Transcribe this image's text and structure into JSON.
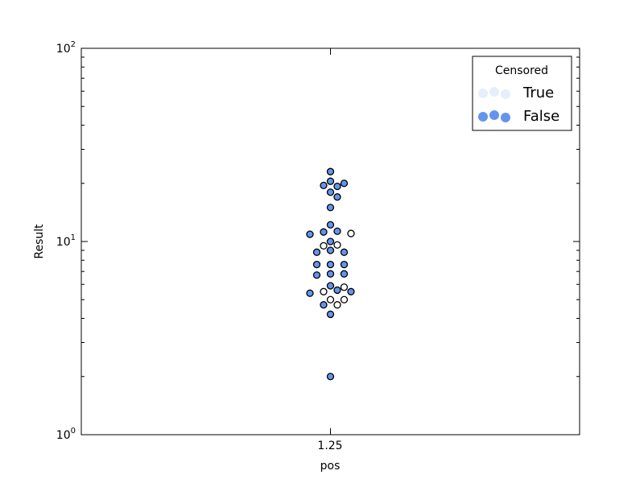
{
  "chart_data": {
    "type": "scatter",
    "title": "",
    "xlabel": "pos",
    "ylabel": "Result",
    "x_categories": [
      "1.25"
    ],
    "yscale": "log",
    "ylim": [
      1,
      100
    ],
    "y_tick_labels": [
      {
        "base": "10",
        "exp": "0"
      },
      {
        "base": "10",
        "exp": "1"
      },
      {
        "base": "10",
        "exp": "2"
      }
    ],
    "grid": false,
    "legend": {
      "title": "Censored",
      "placement": "top-right",
      "entries": [
        {
          "label": "True",
          "color": "#e6eefb"
        },
        {
          "label": "False",
          "color": "#6495ed"
        }
      ]
    },
    "colors": {
      "censored_true_fill": "#ffffff",
      "censored_false_fill": "#6495ed",
      "marker_edge": "#000000"
    },
    "series": [
      {
        "name": "True",
        "x": [
          1.25,
          1.25,
          1.25,
          1.25,
          1.25,
          1.25,
          1.25,
          1.25
        ],
        "y": [
          11.0,
          9.6,
          9.5,
          5.8,
          5.5,
          5.0,
          5.0,
          4.7
        ]
      },
      {
        "name": "False",
        "x": [
          1.25,
          1.25,
          1.25,
          1.25,
          1.25,
          1.25,
          1.25,
          1.25,
          1.25,
          1.25,
          1.25,
          1.25,
          1.25,
          1.25,
          1.25,
          1.25,
          1.25,
          1.25,
          1.25,
          1.25,
          1.25,
          1.25,
          1.25,
          1.25,
          1.25,
          1.25,
          1.25,
          1.25,
          1.25
        ],
        "y": [
          23.0,
          20.5,
          20.0,
          19.5,
          19.3,
          18.0,
          17.0,
          15.0,
          12.2,
          11.3,
          11.2,
          10.9,
          10.0,
          9.0,
          8.8,
          8.8,
          7.6,
          7.6,
          7.6,
          6.8,
          6.8,
          6.7,
          5.9,
          5.6,
          5.5,
          5.4,
          4.7,
          4.2,
          2.0
        ]
      }
    ]
  }
}
